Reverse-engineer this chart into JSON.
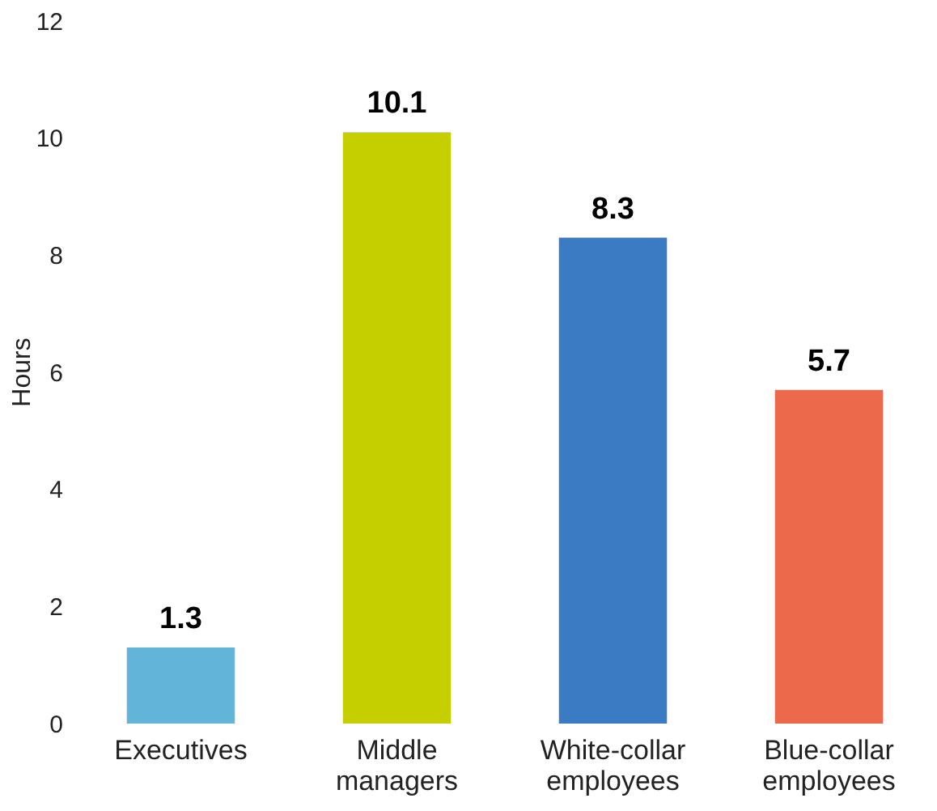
{
  "chart_data": {
    "type": "bar",
    "ylabel": "Hours",
    "categories": [
      "Executives",
      "Middle managers",
      "White-collar employees",
      "Blue-collar employees"
    ],
    "values": [
      1.3,
      10.1,
      8.3,
      5.7
    ],
    "colors": [
      "#62b5d9",
      "#c5cf00",
      "#3b7bc4",
      "#ec6a4b"
    ],
    "ylim": [
      0,
      12
    ],
    "yticks": [
      0,
      2,
      4,
      6,
      8,
      10,
      12
    ],
    "grid": false,
    "data_labels": true
  }
}
